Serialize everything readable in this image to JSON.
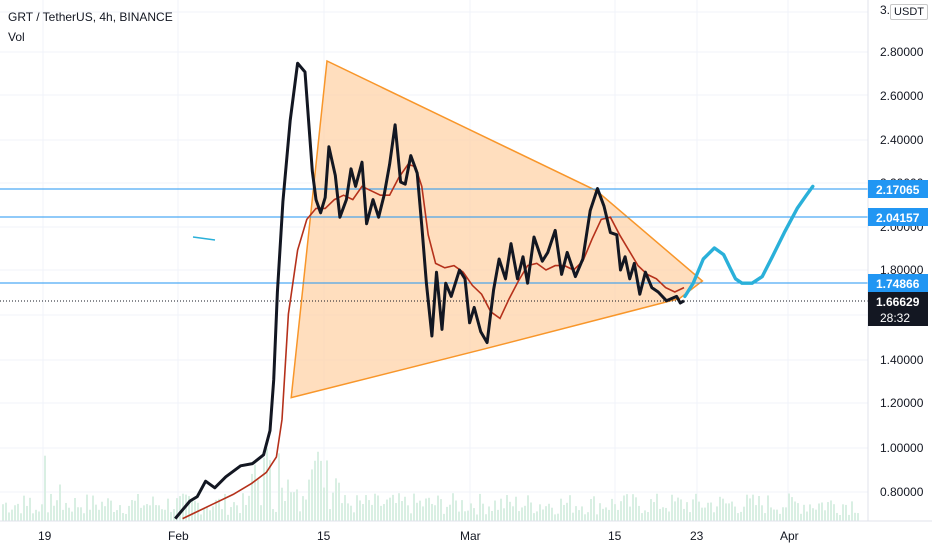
{
  "header": {
    "symbol_line": "GRT / TetherUS, 4h, BINANCE",
    "indicator": "Vol"
  },
  "currency_badge": "USDT",
  "price_axis": {
    "ticks": [
      "3.00000",
      "2.80000",
      "2.60000",
      "2.40000",
      "2.20000",
      "2.00000",
      "1.80000",
      "1.40000",
      "1.20000",
      "1.00000",
      "0.80000"
    ]
  },
  "time_axis": {
    "ticks": [
      "19",
      "Feb",
      "15",
      "Mar",
      "15",
      "23",
      "Apr"
    ]
  },
  "levels": [
    {
      "label": "2.17065",
      "color": "#2196f3"
    },
    {
      "label": "2.04157",
      "color": "#2196f3"
    },
    {
      "label": "1.74866",
      "color": "#2196f3"
    }
  ],
  "current_price": {
    "label": "1.66629",
    "countdown": "28:32",
    "color": "#131722"
  },
  "chart_data": {
    "type": "line",
    "title": "GRT / TetherUS, 4h, BINANCE",
    "ylim": [
      0.66,
      3.02
    ],
    "x_range_days": [
      0,
      74
    ],
    "series": [
      {
        "color": "#131722",
        "x": [
          13.7,
          14.5,
          15.3,
          16.1,
          17.0,
          18.0,
          19.2,
          20.8,
          22.1,
          23.3,
          24.0,
          24.4,
          24.8,
          25.4,
          26.2,
          27.0,
          27.8,
          28.6,
          29.0,
          29.5,
          30.0,
          30.4,
          31.1,
          31.6,
          32.3,
          32.8,
          33.3,
          34.0,
          34.5,
          35.2,
          35.8,
          36.4,
          37.0,
          37.6,
          38.2,
          38.7,
          39.3,
          40.0,
          40.5,
          41.0,
          41.6,
          42.1,
          42.7,
          43.1,
          43.7,
          44.6,
          45.2,
          45.7,
          46.2,
          46.9,
          47.6,
          48.3,
          48.9,
          49.6,
          50.2,
          50.9,
          51.5,
          52.0,
          52.7,
          53.6,
          54.2,
          55.0,
          55.7,
          56.3,
          57.2,
          58.0,
          58.8,
          59.6,
          60.3,
          61.0,
          61.7,
          62.1,
          62.6,
          63.1,
          63.6,
          64.2,
          64.8,
          65.5,
          66.2,
          67.1,
          68.2,
          68.6,
          69.0
        ],
        "y": [
          0.67,
          0.71,
          0.75,
          0.77,
          0.84,
          0.81,
          0.86,
          0.91,
          0.92,
          0.96,
          1.07,
          1.3,
          1.7,
          2.11,
          2.48,
          2.74,
          2.7,
          2.25,
          2.12,
          2.06,
          2.13,
          2.36,
          2.23,
          2.04,
          2.12,
          2.26,
          2.18,
          2.29,
          2.01,
          2.12,
          2.04,
          2.14,
          2.28,
          2.46,
          2.2,
          2.19,
          2.32,
          2.24,
          2.0,
          1.74,
          1.5,
          1.79,
          1.53,
          1.74,
          1.68,
          1.8,
          1.76,
          1.56,
          1.63,
          1.52,
          1.47,
          1.71,
          1.85,
          1.76,
          1.92,
          1.76,
          1.86,
          1.74,
          1.95,
          1.84,
          1.88,
          1.98,
          1.78,
          1.88,
          1.77,
          1.85,
          2.07,
          2.17,
          2.09,
          1.97,
          1.96,
          1.8,
          1.86,
          1.76,
          1.83,
          1.69,
          1.79,
          1.72,
          1.7,
          1.66,
          1.68,
          1.65,
          1.66
        ]
      },
      {
        "color": "#b5311b",
        "x": [
          14.5,
          16.0,
          18.0,
          20.0,
          22.0,
          23.6,
          24.7,
          25.3,
          26.0,
          27.0,
          28.0,
          29.0,
          30.0,
          31.0,
          32.0,
          33.0,
          34.0,
          35.0,
          36.0,
          37.0,
          38.0,
          39.0,
          39.8,
          40.5,
          41.2,
          42.0,
          43.0,
          44.0,
          45.0,
          46.0,
          47.0,
          48.0,
          49.0,
          50.0,
          51.0,
          52.0,
          53.0,
          54.0,
          55.0,
          56.0,
          57.0,
          58.0,
          59.0,
          60.0,
          61.0,
          62.0,
          63.0,
          64.0,
          65.0,
          66.0,
          67.0,
          68.0,
          69.0
        ],
        "y": [
          0.67,
          0.7,
          0.74,
          0.78,
          0.83,
          0.88,
          0.95,
          1.12,
          1.6,
          1.89,
          2.03,
          2.08,
          2.08,
          2.12,
          2.14,
          2.12,
          2.18,
          2.16,
          2.14,
          2.14,
          2.22,
          2.28,
          2.27,
          2.18,
          1.96,
          1.83,
          1.81,
          1.82,
          1.79,
          1.73,
          1.69,
          1.61,
          1.58,
          1.67,
          1.75,
          1.82,
          1.83,
          1.8,
          1.82,
          1.82,
          1.8,
          1.84,
          1.94,
          2.03,
          2.04,
          1.96,
          1.89,
          1.82,
          1.78,
          1.76,
          1.72,
          1.7,
          1.72
        ]
      },
      {
        "color": "#2ab0d9",
        "x": [
          69.1,
          70.0,
          71.1,
          72.3,
          73.3,
          74.0,
          74.6,
          75.3,
          76.4,
          77.5,
          78.6,
          79.9,
          81.3,
          82.3,
          83.0
        ],
        "y": [
          1.68,
          1.74,
          1.85,
          1.9,
          1.87,
          1.81,
          1.76,
          1.74,
          1.74,
          1.77,
          1.86,
          1.97,
          2.08,
          2.14,
          2.18
        ]
      }
    ],
    "triangle": {
      "x": [
        26.3,
        30.2,
        59.5,
        71.0,
        68.5,
        47.2,
        26.3
      ],
      "y": [
        1.22,
        2.75,
        2.16,
        1.75,
        1.67,
        1.44,
        1.22
      ]
    },
    "fill_color": "#ffd3a8",
    "stroke_color": "#f8962a",
    "volume_color": "#d9efe3"
  }
}
